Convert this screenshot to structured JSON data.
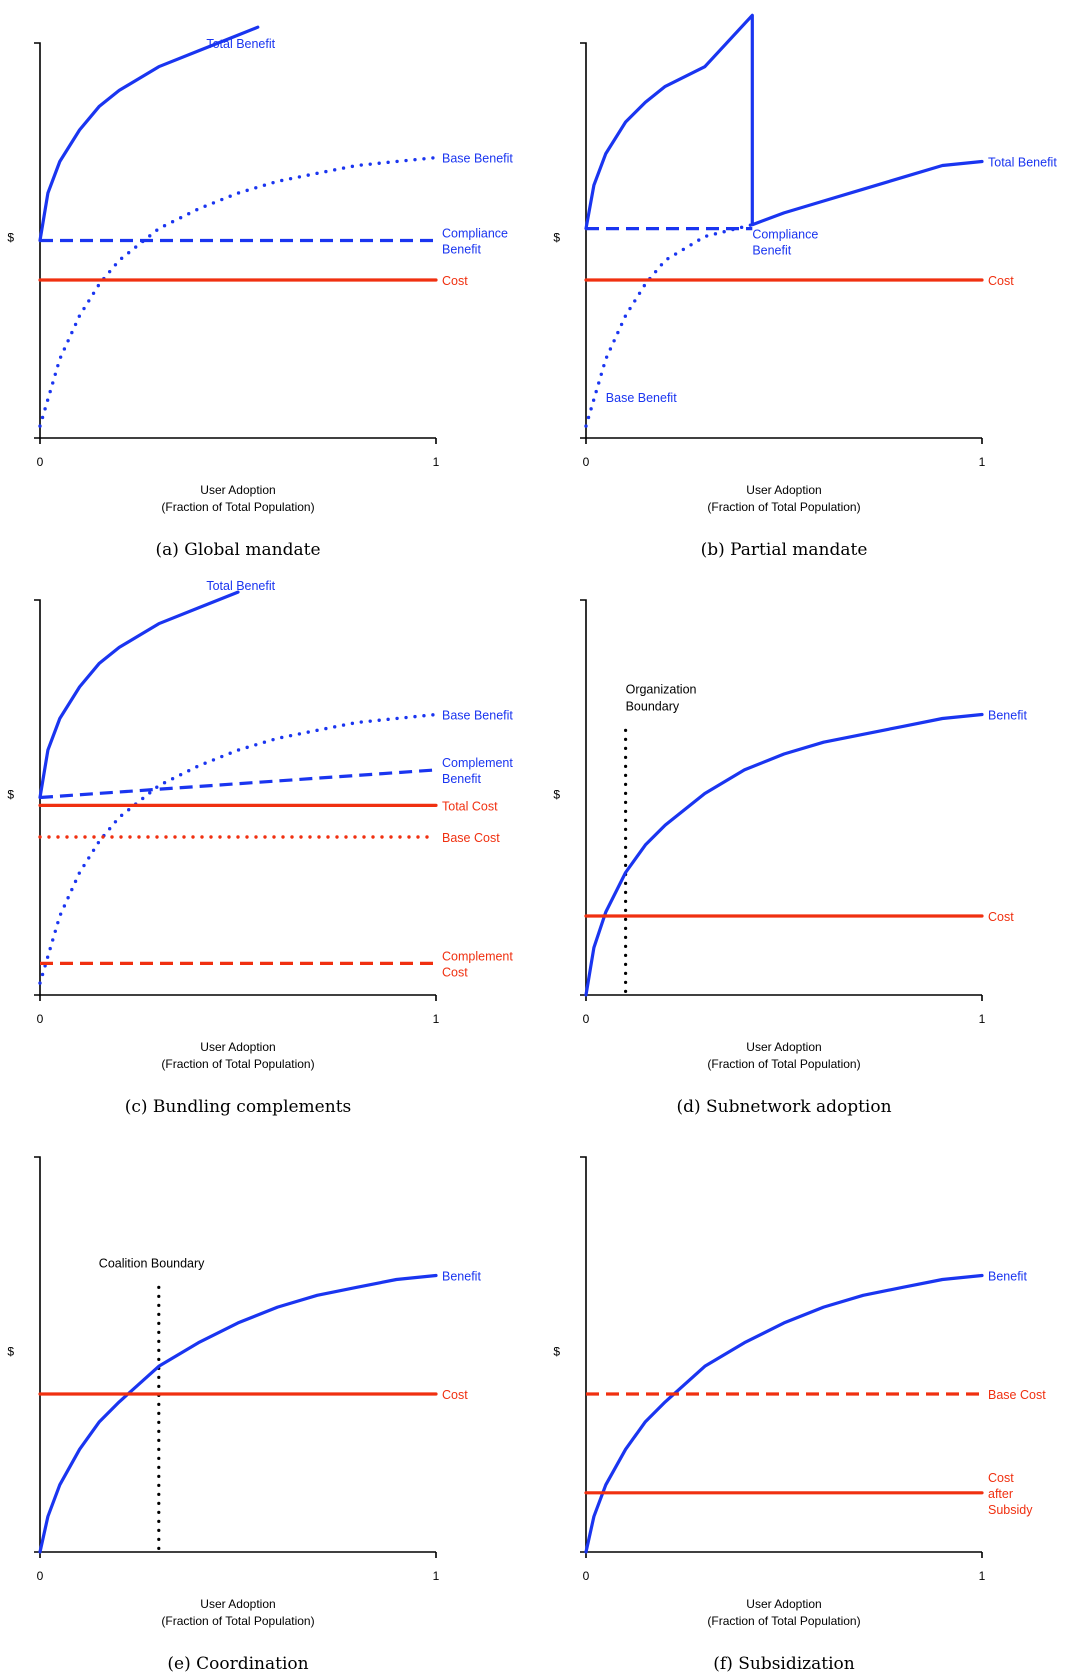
{
  "colors": {
    "benefit": "#1a35f0",
    "cost": "#f03010",
    "boundary": "#000000",
    "axis": "#000000"
  },
  "chart_data": [
    {
      "type": "line",
      "caption": "(a) Global mandate",
      "ylabel": "$",
      "xlabel": "User Adoption",
      "xlabel2": "(Fraction of Total Population)",
      "xticks": [
        "0",
        "1"
      ],
      "xlim": [
        0,
        1
      ],
      "ylim": [
        0,
        1
      ],
      "series": [
        {
          "name": "Total Benefit",
          "label": [
            "Total Benefit"
          ],
          "color": "benefit",
          "style": "solid",
          "x": [
            0,
            0.02,
            0.05,
            0.1,
            0.15,
            0.2,
            0.3,
            0.4,
            0.5,
            0.55
          ],
          "y": [
            0.5,
            0.62,
            0.7,
            0.78,
            0.84,
            0.88,
            0.94,
            0.98,
            1.02,
            1.04
          ]
        },
        {
          "name": "Base Benefit",
          "label": [
            "Base Benefit"
          ],
          "color": "benefit",
          "style": "dotted",
          "x": [
            0,
            0.05,
            0.1,
            0.15,
            0.2,
            0.3,
            0.4,
            0.5,
            0.6,
            0.7,
            0.8,
            0.9,
            1.0
          ],
          "y": [
            0.03,
            0.2,
            0.31,
            0.39,
            0.45,
            0.53,
            0.58,
            0.62,
            0.65,
            0.67,
            0.69,
            0.7,
            0.71
          ]
        },
        {
          "name": "Compliance Benefit",
          "label": [
            "Compliance",
            "Benefit"
          ],
          "color": "benefit",
          "style": "dashed",
          "x": [
            0,
            1
          ],
          "y": [
            0.5,
            0.5
          ]
        },
        {
          "name": "Cost",
          "label": [
            "Cost"
          ],
          "color": "cost",
          "style": "solid",
          "x": [
            0,
            1
          ],
          "y": [
            0.4,
            0.4
          ]
        }
      ]
    },
    {
      "type": "line",
      "caption": "(b) Partial mandate",
      "ylabel": "$",
      "xlabel": "User Adoption",
      "xlabel2": "(Fraction of Total Population)",
      "xticks": [
        "0",
        "1"
      ],
      "xlim": [
        0,
        1
      ],
      "ylim": [
        0,
        1
      ],
      "series": [
        {
          "name": "Total Benefit",
          "label": [
            "Total Benefit"
          ],
          "color": "benefit",
          "style": "solid",
          "x": [
            0,
            0.02,
            0.05,
            0.1,
            0.15,
            0.2,
            0.3,
            0.42,
            0.42,
            0.5,
            0.6,
            0.7,
            0.8,
            0.9,
            1.0
          ],
          "y": [
            0.53,
            0.64,
            0.72,
            0.8,
            0.85,
            0.89,
            0.94,
            1.07,
            0.54,
            0.57,
            0.6,
            0.63,
            0.66,
            0.69,
            0.7
          ]
        },
        {
          "name": "Base Benefit",
          "label": [
            "Base Benefit"
          ],
          "color": "benefit",
          "style": "dotted",
          "x": [
            0,
            0.05,
            0.1,
            0.15,
            0.2,
            0.3,
            0.42
          ],
          "y": [
            0.03,
            0.2,
            0.31,
            0.39,
            0.45,
            0.51,
            0.54
          ]
        },
        {
          "name": "Compliance Benefit",
          "label": [
            "Compliance",
            "Benefit"
          ],
          "color": "benefit",
          "style": "dashed",
          "x": [
            0,
            0.42
          ],
          "y": [
            0.53,
            0.53
          ]
        },
        {
          "name": "Cost",
          "label": [
            "Cost"
          ],
          "color": "cost",
          "style": "solid",
          "x": [
            0,
            1
          ],
          "y": [
            0.4,
            0.4
          ]
        }
      ]
    },
    {
      "type": "line",
      "caption": "(c) Bundling complements",
      "ylabel": "$",
      "xlabel": "User Adoption",
      "xlabel2": "(Fraction of Total Population)",
      "xticks": [
        "0",
        "1"
      ],
      "xlim": [
        0,
        1
      ],
      "ylim": [
        0,
        1
      ],
      "series": [
        {
          "name": "Total Benefit",
          "label": [
            "Total Benefit"
          ],
          "color": "benefit",
          "style": "solid",
          "x": [
            0,
            0.02,
            0.05,
            0.1,
            0.15,
            0.2,
            0.3,
            0.4,
            0.5
          ],
          "y": [
            0.5,
            0.62,
            0.7,
            0.78,
            0.84,
            0.88,
            0.94,
            0.98,
            1.02
          ]
        },
        {
          "name": "Base Benefit",
          "label": [
            "Base Benefit"
          ],
          "color": "benefit",
          "style": "dotted",
          "x": [
            0,
            0.05,
            0.1,
            0.15,
            0.2,
            0.3,
            0.4,
            0.5,
            0.6,
            0.7,
            0.8,
            0.9,
            1.0
          ],
          "y": [
            0.03,
            0.2,
            0.31,
            0.39,
            0.45,
            0.53,
            0.58,
            0.62,
            0.65,
            0.67,
            0.69,
            0.7,
            0.71
          ]
        },
        {
          "name": "Complement Benefit",
          "label": [
            "Complement",
            "Benefit"
          ],
          "color": "benefit",
          "style": "dashed",
          "x": [
            0,
            1
          ],
          "y": [
            0.5,
            0.57
          ]
        },
        {
          "name": "Total Cost",
          "label": [
            "Total Cost"
          ],
          "color": "cost",
          "style": "solid",
          "x": [
            0,
            1
          ],
          "y": [
            0.48,
            0.48
          ]
        },
        {
          "name": "Base Cost",
          "label": [
            "Base Cost"
          ],
          "color": "cost",
          "style": "dotted",
          "x": [
            0,
            1
          ],
          "y": [
            0.4,
            0.4
          ]
        },
        {
          "name": "Complement Cost",
          "label": [
            "Complement",
            "Cost"
          ],
          "color": "cost",
          "style": "dashed",
          "x": [
            0,
            1
          ],
          "y": [
            0.08,
            0.08
          ]
        }
      ]
    },
    {
      "type": "line",
      "caption": "(d) Subnetwork adoption",
      "ylabel": "$",
      "xlabel": "User Adoption",
      "xlabel2": "(Fraction of Total Population)",
      "xticks": [
        "0",
        "1"
      ],
      "xlim": [
        0,
        1
      ],
      "ylim": [
        0,
        1
      ],
      "boundary": {
        "label": [
          "Organization",
          "Boundary"
        ],
        "x": 0.1,
        "y_top": 0.67
      },
      "series": [
        {
          "name": "Benefit",
          "label": [
            "Benefit"
          ],
          "color": "benefit",
          "style": "solid",
          "x": [
            0,
            0.02,
            0.05,
            0.1,
            0.15,
            0.2,
            0.3,
            0.4,
            0.5,
            0.6,
            0.7,
            0.8,
            0.9,
            1.0
          ],
          "y": [
            0,
            0.12,
            0.21,
            0.31,
            0.38,
            0.43,
            0.51,
            0.57,
            0.61,
            0.64,
            0.66,
            0.68,
            0.7,
            0.71
          ]
        },
        {
          "name": "Cost",
          "label": [
            "Cost"
          ],
          "color": "cost",
          "style": "solid",
          "x": [
            0,
            1
          ],
          "y": [
            0.2,
            0.2
          ]
        }
      ]
    },
    {
      "type": "line",
      "caption": "(e) Coordination",
      "ylabel": "$",
      "xlabel": "User Adoption",
      "xlabel2": "(Fraction of Total Population)",
      "xticks": [
        "0",
        "1"
      ],
      "xlim": [
        0,
        1
      ],
      "ylim": [
        0,
        1
      ],
      "boundary": {
        "label": [
          "Coalition Boundary"
        ],
        "x": 0.3,
        "y_top": 0.67
      },
      "series": [
        {
          "name": "Benefit",
          "label": [
            "Benefit"
          ],
          "color": "benefit",
          "style": "solid",
          "x": [
            0,
            0.02,
            0.05,
            0.1,
            0.15,
            0.2,
            0.3,
            0.4,
            0.5,
            0.6,
            0.7,
            0.8,
            0.9,
            1.0
          ],
          "y": [
            0,
            0.09,
            0.17,
            0.26,
            0.33,
            0.38,
            0.47,
            0.53,
            0.58,
            0.62,
            0.65,
            0.67,
            0.69,
            0.7
          ]
        },
        {
          "name": "Cost",
          "label": [
            "Cost"
          ],
          "color": "cost",
          "style": "solid",
          "x": [
            0,
            1
          ],
          "y": [
            0.4,
            0.4
          ]
        }
      ]
    },
    {
      "type": "line",
      "caption": "(f) Subsidization",
      "ylabel": "$",
      "xlabel": "User Adoption",
      "xlabel2": "(Fraction of Total Population)",
      "xticks": [
        "0",
        "1"
      ],
      "xlim": [
        0,
        1
      ],
      "ylim": [
        0,
        1
      ],
      "series": [
        {
          "name": "Benefit",
          "label": [
            "Benefit"
          ],
          "color": "benefit",
          "style": "solid",
          "x": [
            0,
            0.02,
            0.05,
            0.1,
            0.15,
            0.2,
            0.3,
            0.4,
            0.5,
            0.6,
            0.7,
            0.8,
            0.9,
            1.0
          ],
          "y": [
            0,
            0.09,
            0.17,
            0.26,
            0.33,
            0.38,
            0.47,
            0.53,
            0.58,
            0.62,
            0.65,
            0.67,
            0.69,
            0.7
          ]
        },
        {
          "name": "Base Cost",
          "label": [
            "Base Cost"
          ],
          "color": "cost",
          "style": "dashed",
          "x": [
            0,
            1
          ],
          "y": [
            0.4,
            0.4
          ]
        },
        {
          "name": "Cost after Subsidy",
          "label": [
            "Cost",
            "after",
            "Subsidy"
          ],
          "color": "cost",
          "style": "solid",
          "x": [
            0,
            1
          ],
          "y": [
            0.15,
            0.15
          ]
        }
      ]
    }
  ]
}
